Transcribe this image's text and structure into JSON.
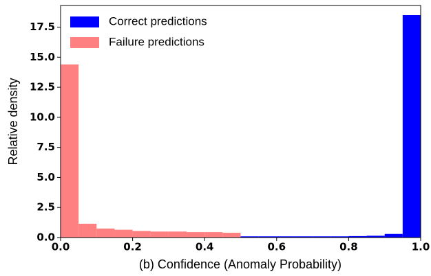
{
  "chart_data": {
    "type": "histogram",
    "xlabel": "(b) Confidence (Anomaly Probability)",
    "ylabel": "Relative density",
    "series": [
      {
        "name": "Correct predictions",
        "color": "#0000ff",
        "bins": [
          0.5,
          0.55,
          0.6,
          0.65,
          0.7,
          0.75,
          0.8,
          0.85,
          0.9,
          0.95,
          1.0
        ],
        "values": [
          0.1,
          0.1,
          0.1,
          0.1,
          0.1,
          0.1,
          0.12,
          0.15,
          0.3,
          18.5
        ]
      },
      {
        "name": "Failure predictions",
        "color": "#ff8080",
        "bins": [
          0.0,
          0.05,
          0.1,
          0.15,
          0.2,
          0.25,
          0.3,
          0.35,
          0.4,
          0.45,
          0.5
        ],
        "values": [
          14.4,
          1.15,
          0.75,
          0.65,
          0.55,
          0.5,
          0.5,
          0.45,
          0.45,
          0.4
        ]
      }
    ],
    "xlim": [
      0,
      1.0
    ],
    "xticks": [
      {
        "value": 0,
        "label": "0.0"
      },
      {
        "value": 0.2,
        "label": "0.2"
      },
      {
        "value": 0.4,
        "label": "0.4"
      },
      {
        "value": 0.6,
        "label": "0.6"
      },
      {
        "value": 0.8,
        "label": "0.8"
      },
      {
        "value": 1.0,
        "label": "1.0"
      }
    ],
    "ylim": [
      0,
      19.3
    ],
    "yticks": [
      {
        "value": 0,
        "label": "0.0"
      },
      {
        "value": 2.5,
        "label": "2.5"
      },
      {
        "value": 5,
        "label": "5.0"
      },
      {
        "value": 7.5,
        "label": "7.5"
      },
      {
        "value": 10,
        "label": "10.0"
      },
      {
        "value": 12.5,
        "label": "12.5"
      },
      {
        "value": 15,
        "label": "15.0"
      },
      {
        "value": 17.5,
        "label": "17.5"
      }
    ],
    "legend": "upper left"
  }
}
